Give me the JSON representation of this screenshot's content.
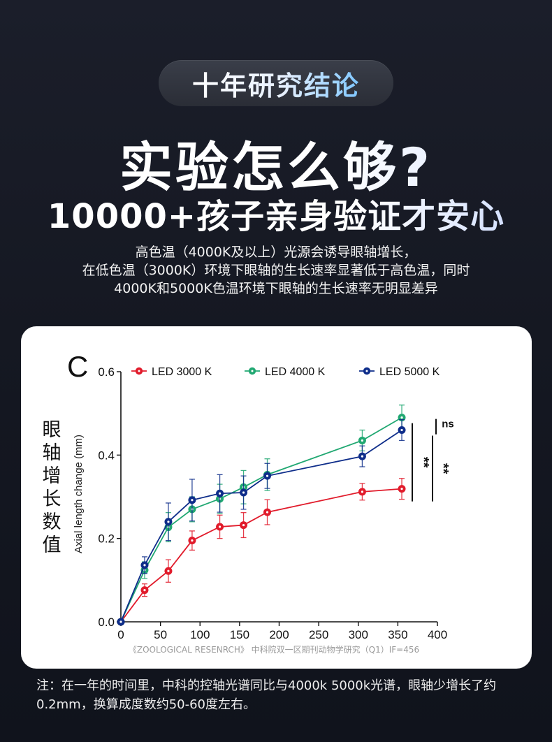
{
  "badge": {
    "text": "十年研究结论"
  },
  "headline": {
    "line1": "实验怎么够?",
    "line2": "10000+孩子亲身验证才安心"
  },
  "description": {
    "lines": [
      "高色温（4000K及以上）光源会诱导眼轴增长，",
      "在低色温（3000K）环境下眼轴的生长速率显著低于高色温，同时",
      "4000K和5000K色温环境下眼轴的生长速率无明显差异"
    ]
  },
  "source_caption": "《ZOOLOGICAL RESENRCH》 中科院双一区期刊动物学研究（Q1）IF=456",
  "footnote": "注：在一年的时间里，中科的控轴光谱同比与4000k 5000k光谱，眼轴少增长了约0.2mm，换算成度数约50-60度左右。",
  "chart_data": {
    "type": "line",
    "panel_label": "C",
    "ylabel": "Axial length change (mm)",
    "ylabel_cn": "眼轴增长数值",
    "xlabel": "",
    "xlim": [
      0,
      400
    ],
    "ylim": [
      0,
      0.6
    ],
    "x_ticks": [
      "0",
      "50",
      "100",
      "150",
      "200",
      "250",
      "300",
      "350",
      "400"
    ],
    "y_ticks": [
      "0.0",
      "0.2",
      "0.4",
      "0.6"
    ],
    "x": [
      0,
      30,
      60,
      90,
      125,
      155,
      185,
      305,
      355
    ],
    "legend_position": "top",
    "series": [
      {
        "name": "LED 3000 K",
        "color": "#e11b2b",
        "values": [
          0,
          0.076,
          0.122,
          0.195,
          0.228,
          0.232,
          0.263,
          0.312,
          0.319
        ],
        "errors": [
          0,
          0.015,
          0.027,
          0.023,
          0.028,
          0.03,
          0.03,
          0.02,
          0.025
        ]
      },
      {
        "name": "LED 4000 K",
        "color": "#21a872",
        "values": [
          0,
          0.124,
          0.227,
          0.27,
          0.295,
          0.323,
          0.353,
          0.435,
          0.49
        ],
        "errors": [
          0,
          0.02,
          0.035,
          0.03,
          0.035,
          0.04,
          0.038,
          0.025,
          0.03
        ]
      },
      {
        "name": "LED 5000 K",
        "color": "#0e2d8a",
        "values": [
          0,
          0.136,
          0.24,
          0.292,
          0.308,
          0.31,
          0.35,
          0.397,
          0.46
        ],
        "errors": [
          0,
          0.02,
          0.045,
          0.05,
          0.045,
          0.04,
          0.03,
          0.025,
          0.025
        ]
      }
    ],
    "annotations": [
      {
        "text": "ns",
        "series": [
          "LED 4000 K",
          "LED 5000 K"
        ]
      },
      {
        "text": "**",
        "series": [
          "LED 3000 K",
          "LED 4000 K"
        ]
      },
      {
        "text": "**",
        "series": [
          "LED 3000 K",
          "LED 5000 K"
        ]
      }
    ]
  }
}
